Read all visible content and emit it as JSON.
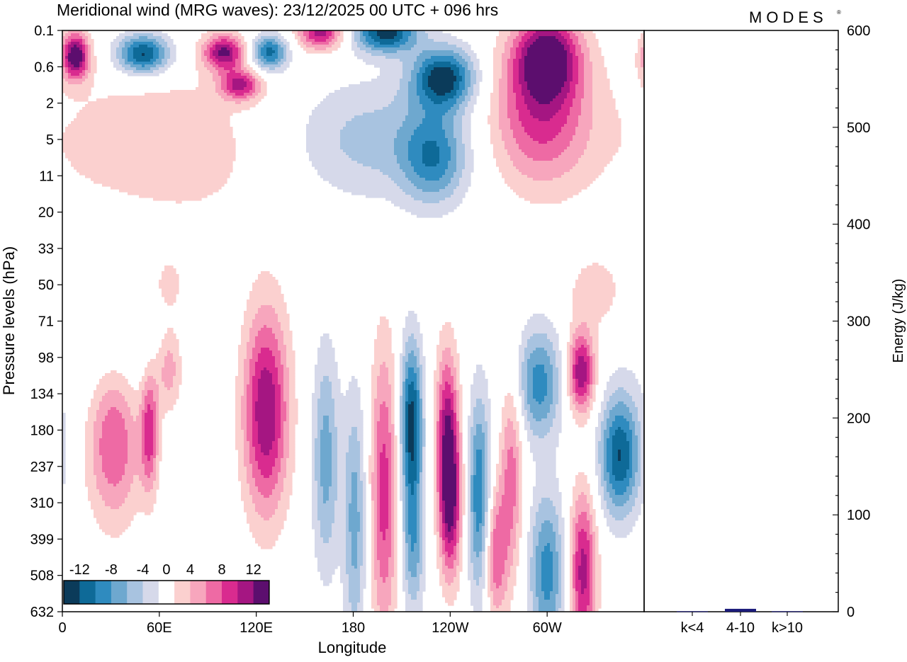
{
  "header": {
    "title": "Meridional wind (MRG waves):  23/12/2025  00 UTC  + 096 hrs",
    "logo_text": "MODES",
    "logo_mark": "®"
  },
  "colors": {
    "levels": [
      "#0b3b5a",
      "#0e6a98",
      "#2f8bbf",
      "#6ea8cf",
      "#a8c3e0",
      "#d6d9ea",
      "#ffffff",
      "#fbd0cf",
      "#f7a6bd",
      "#ee6aa4",
      "#d92b8f",
      "#a51682",
      "#5c0e6e"
    ]
  },
  "chart_data": [
    {
      "type": "heatmap",
      "title": "Meridional wind (MRG waves)",
      "xlabel": "Longitude",
      "ylabel": "Pressure levels (hPa)",
      "x_ticks": [
        "0",
        "60E",
        "120E",
        "180",
        "120W",
        "60W"
      ],
      "x_tick_values": [
        0,
        60,
        120,
        180,
        240,
        300
      ],
      "xlim": [
        0,
        360
      ],
      "y_ticks": [
        "0.1",
        "0.6",
        "2",
        "5",
        "11",
        "20",
        "33",
        "50",
        "71",
        "98",
        "134",
        "180",
        "237",
        "310",
        "399",
        "508",
        "632"
      ],
      "colorbar": {
        "labels": [
          "-12",
          "-8",
          "-4",
          "0",
          "4",
          "8",
          "12"
        ],
        "label_values": [
          -12,
          -8,
          -4,
          0,
          4,
          8,
          12
        ],
        "levels": [
          -14,
          -12,
          -10,
          -8,
          -6,
          -4,
          -2,
          2,
          4,
          6,
          8,
          10,
          12,
          14
        ]
      },
      "features": [
        {
          "lon": 8,
          "lev": 0.7,
          "rx": 6,
          "ry": 0.45,
          "v": 14
        },
        {
          "lon": 50,
          "lev": 0.65,
          "rx": 12,
          "ry": 0.4,
          "v": -13
        },
        {
          "lon": 100,
          "lev": 0.6,
          "rx": 9,
          "ry": 0.35,
          "v": 12
        },
        {
          "lon": 128,
          "lev": 0.6,
          "rx": 8,
          "ry": 0.35,
          "v": -11
        },
        {
          "lon": 160,
          "lev": 0.05,
          "rx": 10,
          "ry": 0.35,
          "v": 11
        },
        {
          "lon": 200,
          "lev": 0.05,
          "rx": 14,
          "ry": 0.4,
          "v": -13
        },
        {
          "lon": 236,
          "lev": 1.3,
          "rx": 14,
          "ry": 0.6,
          "v": -13
        },
        {
          "lon": 300,
          "lev": 0.7,
          "rx": 14,
          "ry": 0.8,
          "v": 12
        },
        {
          "lon": 296,
          "lev": 2.3,
          "rx": 22,
          "ry": 1.4,
          "v": 9
        },
        {
          "lon": 110,
          "lev": 1.5,
          "rx": 9,
          "ry": 0.3,
          "v": 10
        },
        {
          "lon": 190,
          "lev": 3.0,
          "rx": 38,
          "ry": 1.2,
          "v": -5
        },
        {
          "lon": 230,
          "lev": 3.5,
          "rx": 14,
          "ry": 0.9,
          "v": -8
        },
        {
          "lon": 60,
          "lev": 3.2,
          "rx": 55,
          "ry": 1.6,
          "v": 3.5
        },
        {
          "lon": 32,
          "lev": 11.2,
          "rx": 12,
          "ry": 1.6,
          "v": 9
        },
        {
          "lon": 54,
          "lev": 11.0,
          "rx": 4,
          "ry": 1.2,
          "v": 9
        },
        {
          "lon": 66,
          "lev": 9.3,
          "rx": 6,
          "ry": 0.9,
          "v": 6
        },
        {
          "lon": 126,
          "lev": 10.5,
          "rx": 10,
          "ry": 2.0,
          "v": 12
        },
        {
          "lon": 163,
          "lev": 11.8,
          "rx": 6,
          "ry": 2.2,
          "v": -7
        },
        {
          "lon": 181,
          "lev": 13.5,
          "rx": 5,
          "ry": 2.5,
          "v": -7
        },
        {
          "lon": 199,
          "lev": 12.7,
          "rx": 6,
          "ry": 2.8,
          "v": 9
        },
        {
          "lon": 216,
          "lev": 10.8,
          "rx": 5,
          "ry": 1.6,
          "v": -13
        },
        {
          "lon": 217,
          "lev": 14.2,
          "rx": 5,
          "ry": 1.4,
          "v": -7
        },
        {
          "lon": 238,
          "lev": 10.8,
          "rx": 5,
          "ry": 1.6,
          "v": 9
        },
        {
          "lon": 240,
          "lev": 13.0,
          "rx": 5,
          "ry": 1.5,
          "v": 12
        },
        {
          "lon": 258,
          "lev": 12.8,
          "rx": 5,
          "ry": 2.0,
          "v": -10
        },
        {
          "lon": 278,
          "lev": 12.2,
          "rx": 5,
          "ry": 2.0,
          "v": 7
        },
        {
          "lon": 268,
          "lev": 14.4,
          "rx": 5,
          "ry": 1.3,
          "v": 8
        },
        {
          "lon": 295,
          "lev": 9.7,
          "rx": 10,
          "ry": 1.1,
          "v": -9
        },
        {
          "lon": 300,
          "lev": 14.9,
          "rx": 8,
          "ry": 1.6,
          "v": -9
        },
        {
          "lon": 321,
          "lev": 9.4,
          "rx": 6,
          "ry": 0.8,
          "v": 12
        },
        {
          "lon": 322,
          "lev": 14.9,
          "rx": 6,
          "ry": 1.6,
          "v": 11
        },
        {
          "lon": 345,
          "lev": 11.7,
          "rx": 9,
          "ry": 1.2,
          "v": -12
        },
        {
          "lon": 330,
          "lev": 7.2,
          "rx": 12,
          "ry": 0.7,
          "v": 3.5
        },
        {
          "lon": 65,
          "lev": 7.0,
          "rx": 8,
          "ry": 0.6,
          "v": 3.5
        },
        {
          "lon": 35,
          "lev": 8.5,
          "rx": 25,
          "ry": 2.0,
          "v": -3
        }
      ]
    },
    {
      "type": "bar",
      "ylabel": "Energy (J/kg)",
      "categories": [
        "k<4",
        "4-10",
        "k>10"
      ],
      "values": [
        0.5,
        3,
        0.5
      ],
      "ylim": [
        0,
        600
      ],
      "y_ticks": [
        "0",
        "100",
        "200",
        "300",
        "400",
        "500",
        "600"
      ],
      "y_tick_values": [
        0,
        100,
        200,
        300,
        400,
        500,
        600
      ],
      "bar_color": "#1a1a7a"
    }
  ]
}
